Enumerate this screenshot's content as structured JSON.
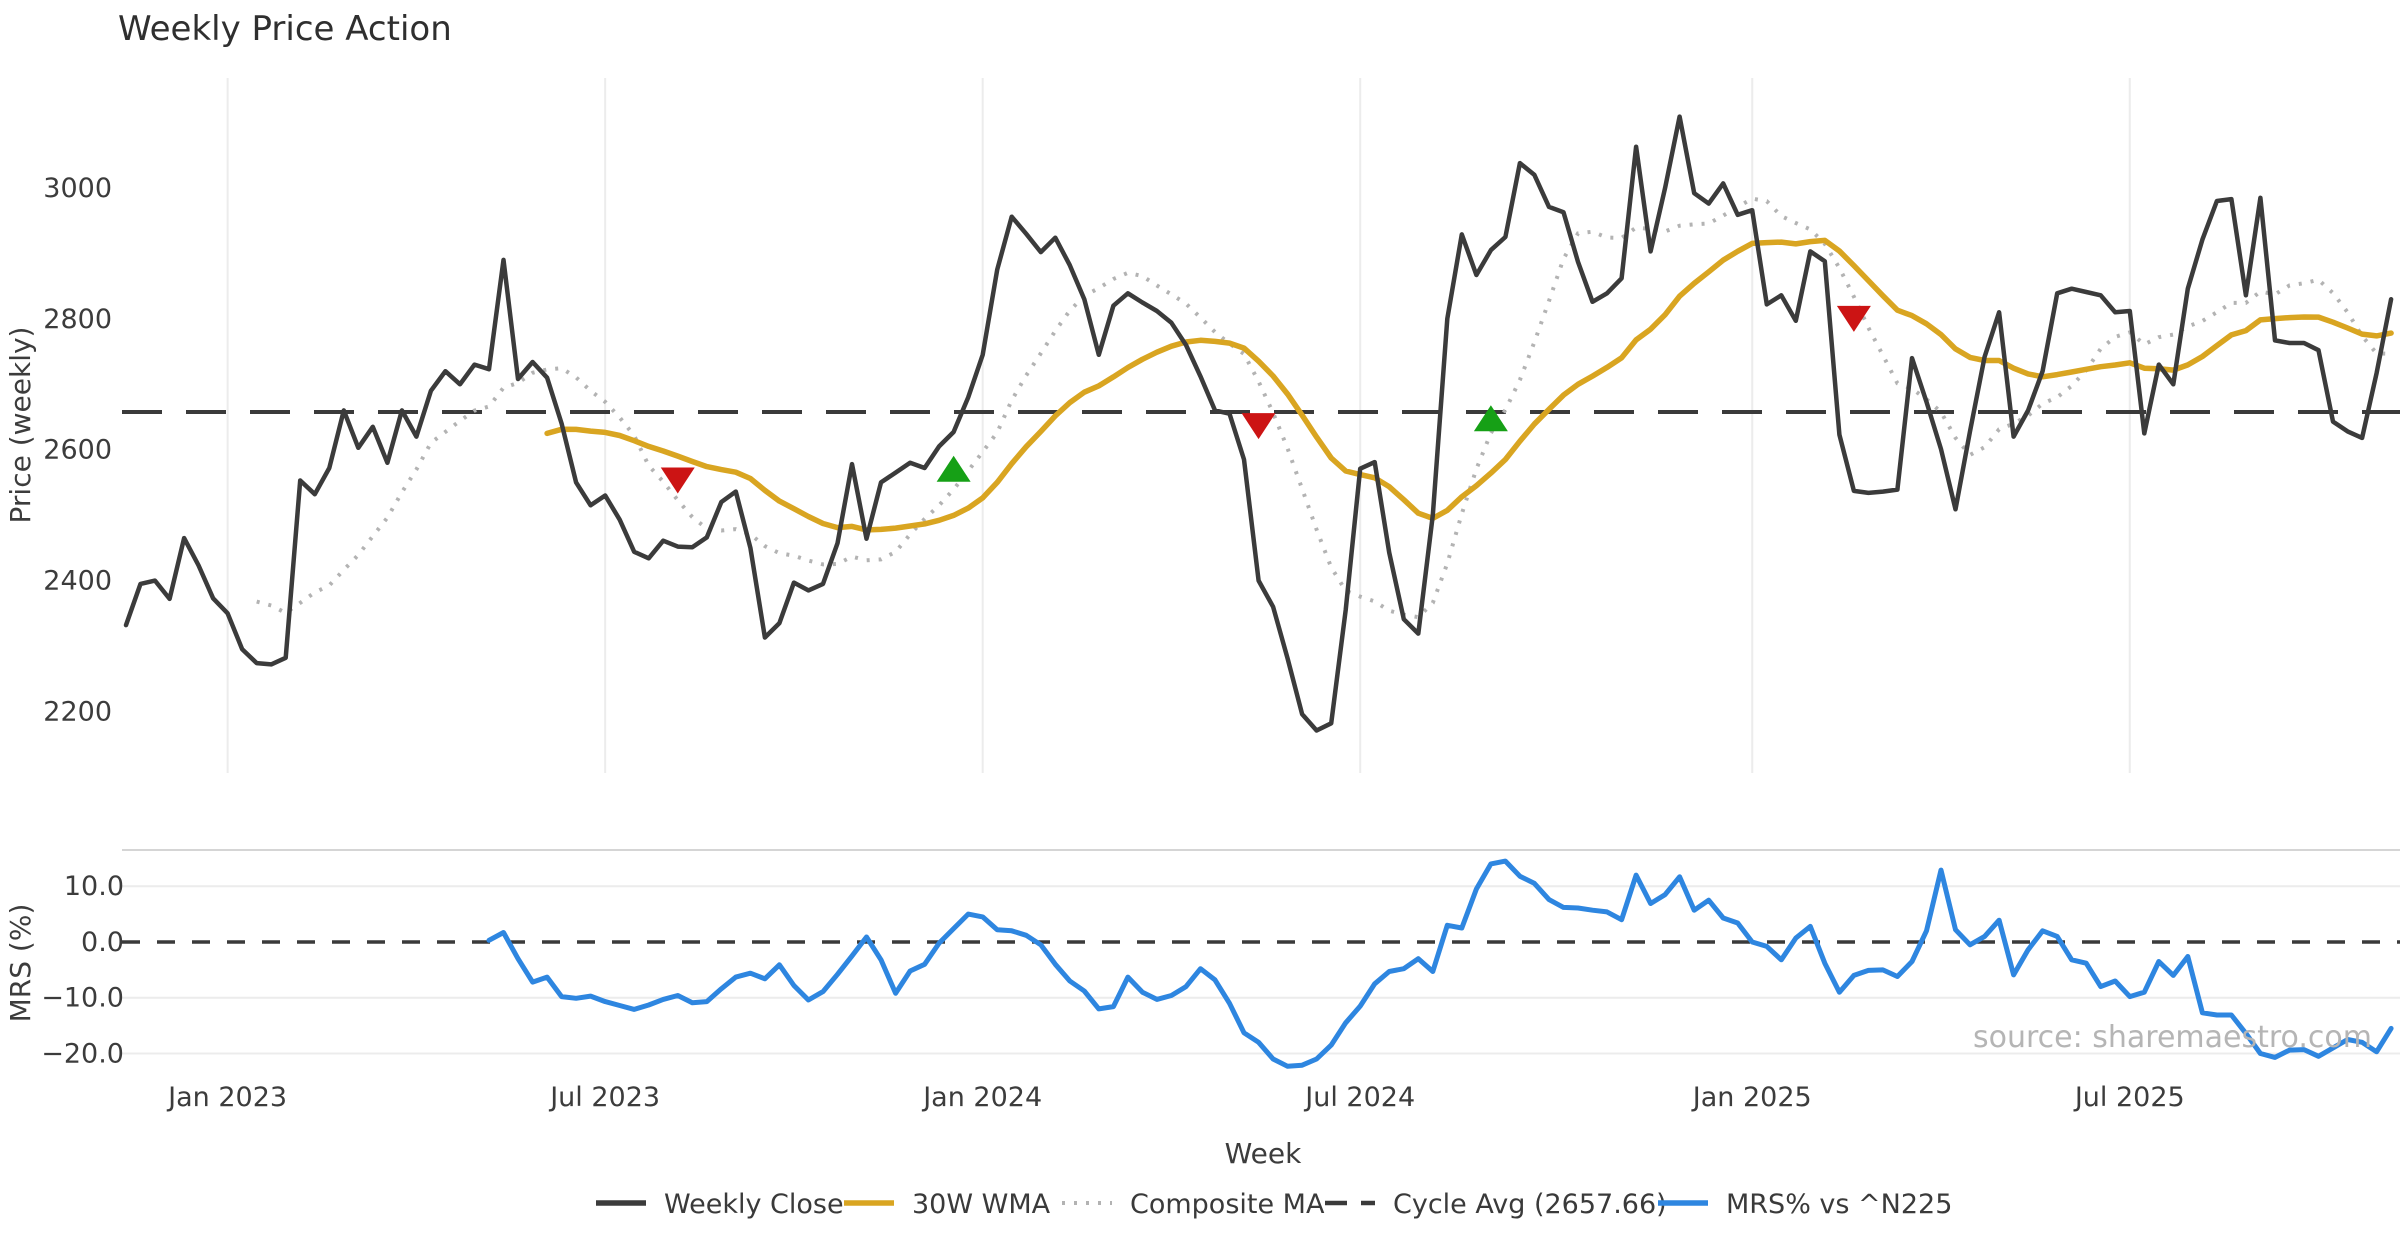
{
  "title": "Weekly Price Action",
  "source_watermark": "source: sharemaestro.com",
  "colors": {
    "background": "#ffffff",
    "weekly_close": "#3b3b3b",
    "wma_30w": "#d9a521",
    "composite_ma": "#b3b3b3",
    "cycle_avg": "#3a3a3a",
    "mrs_line": "#2e86e0",
    "sell_marker": "#cc1414",
    "buy_marker": "#16a016",
    "gridline": "#ececec",
    "panel_divider": "#d5d5d5",
    "tick_text": "#3c3c3c",
    "source_text": "#b5b5b5"
  },
  "legend": {
    "items": [
      {
        "label": "Weekly Close",
        "style": "solid",
        "color_key": "weekly_close"
      },
      {
        "label": "30W WMA",
        "style": "solid",
        "color_key": "wma_30w"
      },
      {
        "label": "Composite MA",
        "style": "dotted",
        "color_key": "composite_ma"
      },
      {
        "label": "Cycle Avg (2657.66)",
        "style": "dashed",
        "color_key": "cycle_avg"
      },
      {
        "label": "MRS% vs ^N225",
        "style": "solid",
        "color_key": "mrs_line"
      }
    ]
  },
  "chart_data": {
    "type": "line",
    "weeks_total": 157,
    "start_week": "2022-11-14",
    "xlabel": "Week",
    "x_gridlines": [
      {
        "week": 7,
        "label": "Jan 2023"
      },
      {
        "week": 33,
        "label": "Jul 2023"
      },
      {
        "week": 59,
        "label": "Jan 2024"
      },
      {
        "week": 85,
        "label": "Jul 2024"
      },
      {
        "week": 112,
        "label": "Jan 2025"
      },
      {
        "week": 138,
        "label": "Jul 2025"
      }
    ],
    "price_panel": {
      "ylabel": "Price (weekly)",
      "ylim": [
        2106,
        3168
      ],
      "yticks": [
        {
          "value": 3000,
          "label": "3000"
        },
        {
          "value": 2800,
          "label": "2800"
        },
        {
          "value": 2600,
          "label": "2600"
        },
        {
          "value": 2400,
          "label": "2400"
        },
        {
          "value": 2200,
          "label": "2200"
        }
      ],
      "cycle_avg_value": 2657.66,
      "series": [
        {
          "name": "Weekly Close",
          "kind": "data",
          "color_key": "weekly_close"
        },
        {
          "name": "30W WMA",
          "kind": "derived_wma",
          "window": 30,
          "color_key": "wma_30w"
        },
        {
          "name": "Composite MA",
          "kind": "derived_sma",
          "window": 10,
          "color_key": "composite_ma"
        },
        {
          "name": "Cycle Avg",
          "kind": "hline",
          "value": 2657.66,
          "color_key": "cycle_avg"
        }
      ],
      "weekly_close_values": [
        2332,
        2395,
        2400,
        2372,
        2465,
        2423,
        2373,
        2350,
        2295,
        2274,
        2272,
        2282,
        2553,
        2532,
        2572,
        2660,
        2603,
        2635,
        2580,
        2660,
        2620,
        2690,
        2720,
        2700,
        2730,
        2723,
        2890,
        2708,
        2734,
        2710,
        2640,
        2550,
        2515,
        2530,
        2493,
        2444,
        2434,
        2461,
        2452,
        2451,
        2466,
        2520,
        2536,
        2450,
        2313,
        2335,
        2397,
        2385,
        2395,
        2457,
        2578,
        2464,
        2550,
        2565,
        2580,
        2572,
        2605,
        2627,
        2680,
        2745,
        2875,
        2956,
        2930,
        2902,
        2924,
        2882,
        2830,
        2745,
        2820,
        2839,
        2825,
        2812,
        2794,
        2760,
        2712,
        2660,
        2655,
        2585,
        2400,
        2360,
        2281,
        2196,
        2171,
        2182,
        2355,
        2571,
        2581,
        2443,
        2341,
        2319,
        2500,
        2800,
        2929,
        2867,
        2905,
        2925,
        3038,
        3020,
        2971,
        2963,
        2887,
        2826,
        2839,
        2862,
        3063,
        2903,
        3000,
        3109,
        2992,
        2976,
        3007,
        2959,
        2966,
        2822,
        2836,
        2797,
        2903,
        2888,
        2623,
        2537,
        2534,
        2536,
        2539,
        2740,
        2673,
        2601,
        2509,
        2628,
        2742,
        2810,
        2620,
        2660,
        2720,
        2839,
        2846,
        2841,
        2836,
        2810,
        2812,
        2625,
        2730,
        2700,
        2846,
        2921,
        2980,
        2983,
        2836,
        2985,
        2767,
        2763,
        2763,
        2752,
        2643,
        2628,
        2618,
        2717,
        2830
      ],
      "sell_markers": [
        {
          "week": 38,
          "price": 2553
        },
        {
          "week": 78,
          "price": 2636
        },
        {
          "week": 119,
          "price": 2800
        }
      ],
      "buy_markers": [
        {
          "week": 57,
          "price": 2571
        },
        {
          "week": 94,
          "price": 2648
        }
      ]
    },
    "mrs_panel": {
      "ylabel": "MRS (%)",
      "ylim": [
        -24.4,
        16.5
      ],
      "yticks": [
        {
          "value": 10,
          "label": "10.0"
        },
        {
          "value": 0,
          "label": "0.0"
        },
        {
          "value": -10,
          "label": "−10.0"
        },
        {
          "value": -20,
          "label": "−20.0"
        }
      ],
      "zero_line": 0,
      "series": [
        {
          "name": "MRS% vs ^N225",
          "kind": "data",
          "color_key": "mrs_line"
        }
      ],
      "mrs_values": [
        null,
        null,
        null,
        null,
        null,
        null,
        null,
        null,
        null,
        null,
        null,
        null,
        null,
        null,
        null,
        null,
        null,
        null,
        null,
        null,
        null,
        null,
        null,
        null,
        null,
        0.3,
        1.7,
        -3.0,
        -7.2,
        -6.3,
        -9.8,
        -10.1,
        -9.7,
        -10.7,
        -11.4,
        -12.1,
        -11.3,
        -10.3,
        -9.6,
        -10.9,
        -10.7,
        -8.4,
        -6.3,
        -5.6,
        -6.6,
        -4.1,
        -7.8,
        -10.4,
        -8.9,
        -5.8,
        -2.5,
        0.9,
        -3.2,
        -9.2,
        -5.2,
        -4.0,
        -0.2,
        2.4,
        5.0,
        4.5,
        2.2,
        2.0,
        1.2,
        -0.5,
        -4.0,
        -7.0,
        -8.8,
        -12.0,
        -11.6,
        -6.3,
        -9.0,
        -10.3,
        -9.6,
        -8.0,
        -4.8,
        -6.8,
        -11.0,
        -16.3,
        -18.0,
        -21.0,
        -22.3,
        -22.1,
        -21.0,
        -18.5,
        -14.5,
        -11.5,
        -7.5,
        -5.3,
        -4.8,
        -3.0,
        -5.3,
        3.0,
        2.5,
        9.5,
        14.0,
        14.5,
        11.8,
        10.5,
        7.6,
        6.2,
        6.1,
        5.7,
        5.4,
        4.0,
        12.0,
        6.9,
        8.5,
        11.7,
        5.7,
        7.5,
        4.3,
        3.4,
        0.0,
        -0.8,
        -3.2,
        0.7,
        2.8,
        -3.8,
        -9.0,
        -6.0,
        -5.1,
        -5.0,
        -6.2,
        -3.5,
        2.0,
        12.9,
        2.2,
        -0.5,
        1.0,
        3.9,
        -5.9,
        -1.4,
        2.0,
        1.0,
        -3.2,
        -3.8,
        -8.0,
        -7.0,
        -9.8,
        -9.0,
        -3.5,
        -6.0,
        -2.6,
        -12.7,
        -13.1,
        -13.1,
        -16.4,
        -20.0,
        -20.7,
        -19.4,
        -19.3,
        -20.5,
        -19.0,
        -17.5,
        -18.0,
        -19.7,
        -15.5
      ]
    }
  }
}
